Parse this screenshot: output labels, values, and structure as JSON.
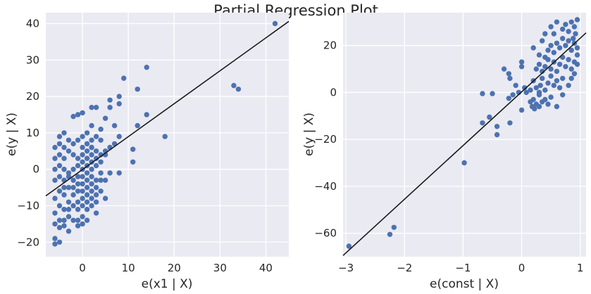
{
  "figure": {
    "suptitle": "Partial Regression Plot"
  },
  "colors": {
    "background": "#eaeaf2",
    "grid": "#ffffff",
    "points": "#4c72b0",
    "line": "#1a1a1a",
    "text": "#262626"
  },
  "chart_data": [
    {
      "type": "scatter",
      "xlabel": "e(x1 | X)",
      "ylabel": "e(y | X)",
      "xlim": [
        -8,
        45
      ],
      "ylim": [
        -24,
        43
      ],
      "xticks": [
        0,
        10,
        20,
        30,
        40
      ],
      "yticks": [
        -20,
        -10,
        0,
        10,
        20,
        30,
        40
      ],
      "xtick_labels": [
        "0",
        "10",
        "20",
        "30",
        "40"
      ],
      "ytick_labels": [
        "−20",
        "−10",
        "0",
        "10",
        "20",
        "30",
        "40"
      ],
      "fit_line": {
        "x": [
          -8,
          45
        ],
        "y": [
          -7.3,
          40.6
        ]
      },
      "points": [
        [
          -6,
          -19
        ],
        [
          -6,
          -20.5
        ],
        [
          -5,
          -20
        ],
        [
          -6,
          -15
        ],
        [
          -5,
          -14
        ],
        [
          -5,
          -16
        ],
        [
          -4,
          -14
        ],
        [
          -4,
          -15.5
        ],
        [
          -3,
          -13
        ],
        [
          -2,
          -14
        ],
        [
          -1,
          -14
        ],
        [
          -1,
          -15.5
        ],
        [
          0,
          -13
        ],
        [
          0,
          -15
        ],
        [
          1,
          -14
        ],
        [
          -6,
          -12
        ],
        [
          -5,
          -10
        ],
        [
          -4,
          -11
        ],
        [
          -3,
          -9
        ],
        [
          -3,
          -11
        ],
        [
          -2,
          -10
        ],
        [
          -1,
          -9
        ],
        [
          -1,
          -11
        ],
        [
          0,
          -10
        ],
        [
          0,
          -8
        ],
        [
          1,
          -9
        ],
        [
          1,
          -11
        ],
        [
          2,
          -10
        ],
        [
          2,
          -8
        ],
        [
          3,
          -9
        ],
        [
          -6,
          -8
        ],
        [
          -5,
          -6
        ],
        [
          -4,
          -5
        ],
        [
          -4,
          -7
        ],
        [
          -3,
          -5
        ],
        [
          -2,
          -7
        ],
        [
          -2,
          -5
        ],
        [
          -1,
          -6
        ],
        [
          0,
          -6
        ],
        [
          0,
          -4
        ],
        [
          1,
          -5
        ],
        [
          1,
          -7
        ],
        [
          2,
          -6
        ],
        [
          2,
          -4
        ],
        [
          3,
          -5
        ],
        [
          3,
          -7
        ],
        [
          4,
          -6
        ],
        [
          4,
          -3
        ],
        [
          -6,
          -3
        ],
        [
          -5,
          -2
        ],
        [
          -4,
          -3
        ],
        [
          -3,
          -2
        ],
        [
          -2,
          -3
        ],
        [
          -1,
          -2
        ],
        [
          -1,
          -4
        ],
        [
          0,
          -2
        ],
        [
          1,
          -3
        ],
        [
          2,
          -2
        ],
        [
          3,
          -3
        ],
        [
          4,
          -1
        ],
        [
          5,
          -3
        ],
        [
          -6,
          0
        ],
        [
          -5,
          1
        ],
        [
          -4,
          0
        ],
        [
          -3,
          -1
        ],
        [
          -2,
          0
        ],
        [
          -1,
          1
        ],
        [
          0,
          0
        ],
        [
          0,
          2
        ],
        [
          1,
          1
        ],
        [
          1,
          -1
        ],
        [
          2,
          0
        ],
        [
          2,
          2
        ],
        [
          3,
          1
        ],
        [
          3,
          3
        ],
        [
          4,
          2
        ],
        [
          -6,
          3
        ],
        [
          -5,
          4
        ],
        [
          -4,
          3
        ],
        [
          -3,
          5
        ],
        [
          -2,
          4
        ],
        [
          -1,
          3
        ],
        [
          0,
          4
        ],
        [
          1,
          5
        ],
        [
          1,
          3
        ],
        [
          2,
          6
        ],
        [
          2,
          4
        ],
        [
          3,
          5
        ],
        [
          4,
          4
        ],
        [
          5,
          5
        ],
        [
          6,
          6
        ],
        [
          -6,
          6
        ],
        [
          -5,
          7
        ],
        [
          -4,
          6
        ],
        [
          -3,
          8
        ],
        [
          -2,
          7
        ],
        [
          -1,
          8
        ],
        [
          0,
          6
        ],
        [
          0,
          9
        ],
        [
          1,
          7
        ],
        [
          2,
          8
        ],
        [
          2,
          6
        ],
        [
          3,
          9
        ],
        [
          4,
          8
        ],
        [
          5,
          4
        ],
        [
          6,
          6
        ],
        [
          7,
          7
        ],
        [
          -5,
          9
        ],
        [
          -4,
          10
        ],
        [
          -2,
          14.5
        ],
        [
          -1,
          15
        ],
        [
          0,
          15.5
        ],
        [
          1,
          10
        ],
        [
          2,
          12
        ],
        [
          2,
          17
        ],
        [
          3,
          17
        ],
        [
          4,
          11
        ],
        [
          5,
          14
        ],
        [
          6,
          17
        ],
        [
          6,
          19
        ],
        [
          8,
          20
        ],
        [
          8,
          18
        ],
        [
          9,
          25
        ],
        [
          12,
          22
        ],
        [
          14,
          28
        ],
        [
          7,
          12
        ],
        [
          8,
          9
        ],
        [
          11,
          5.5
        ],
        [
          11,
          2
        ],
        [
          12,
          12
        ],
        [
          14,
          15
        ],
        [
          18,
          9
        ],
        [
          33,
          23
        ],
        [
          34,
          22
        ],
        [
          42,
          40
        ],
        [
          6,
          -1
        ],
        [
          8,
          -1
        ],
        [
          3,
          -12
        ],
        [
          5,
          -8
        ],
        [
          -3,
          -17
        ]
      ]
    },
    {
      "type": "scatter",
      "xlabel": "e(const | X)",
      "ylabel": "e(y | X)",
      "xlim": [
        -3.05,
        1.1
      ],
      "ylim": [
        -70,
        34
      ],
      "xticks": [
        -3,
        -2,
        -1,
        0,
        1
      ],
      "yticks": [
        -60,
        -40,
        -20,
        0,
        20
      ],
      "xtick_labels": [
        "−3",
        "−2",
        "−1",
        "0",
        "1"
      ],
      "ytick_labels": [
        "−60",
        "−40",
        "−20",
        "0",
        "20"
      ],
      "fit_line": {
        "x": [
          -3.05,
          1.1
        ],
        "y": [
          -69.5,
          25.4
        ]
      },
      "points": [
        [
          -2.95,
          -65.5
        ],
        [
          -2.25,
          -60.5
        ],
        [
          -2.18,
          -57.5
        ],
        [
          -0.98,
          -30
        ],
        [
          -0.67,
          -13
        ],
        [
          -0.55,
          -10.5
        ],
        [
          -0.42,
          -14.5
        ],
        [
          -0.42,
          -18
        ],
        [
          -0.67,
          -0.5
        ],
        [
          -0.5,
          -0.5
        ],
        [
          -0.2,
          -13
        ],
        [
          -0.22,
          -2.5
        ],
        [
          -0.15,
          -1
        ],
        [
          -0.05,
          0
        ],
        [
          0.0,
          -7.5
        ],
        [
          -0.3,
          10
        ],
        [
          -0.22,
          8
        ],
        [
          -0.2,
          6
        ],
        [
          -0.1,
          3
        ],
        [
          0.0,
          11
        ],
        [
          0.0,
          13
        ],
        [
          0.05,
          2
        ],
        [
          0.08,
          0
        ],
        [
          0.15,
          -4
        ],
        [
          0.18,
          -6
        ],
        [
          0.2,
          -3
        ],
        [
          0.22,
          -7
        ],
        [
          0.25,
          -5
        ],
        [
          0.3,
          -6
        ],
        [
          0.35,
          -4
        ],
        [
          0.4,
          -3
        ],
        [
          0.45,
          -5
        ],
        [
          0.5,
          -2
        ],
        [
          0.2,
          5
        ],
        [
          0.25,
          2
        ],
        [
          0.3,
          0
        ],
        [
          0.32,
          3
        ],
        [
          0.35,
          6
        ],
        [
          0.4,
          1
        ],
        [
          0.45,
          4
        ],
        [
          0.5,
          7
        ],
        [
          0.55,
          3
        ],
        [
          0.6,
          5
        ],
        [
          0.65,
          2
        ],
        [
          0.7,
          6
        ],
        [
          0.25,
          10
        ],
        [
          0.3,
          12
        ],
        [
          0.35,
          9
        ],
        [
          0.4,
          11
        ],
        [
          0.45,
          14
        ],
        [
          0.5,
          10
        ],
        [
          0.55,
          13
        ],
        [
          0.6,
          9
        ],
        [
          0.65,
          12
        ],
        [
          0.7,
          15
        ],
        [
          0.75,
          11
        ],
        [
          0.8,
          14
        ],
        [
          0.85,
          10
        ],
        [
          0.9,
          13
        ],
        [
          0.2,
          19
        ],
        [
          0.3,
          16
        ],
        [
          0.35,
          22
        ],
        [
          0.4,
          15
        ],
        [
          0.45,
          18
        ],
        [
          0.5,
          20
        ],
        [
          0.55,
          17
        ],
        [
          0.6,
          21
        ],
        [
          0.65,
          19
        ],
        [
          0.7,
          23
        ],
        [
          0.75,
          20
        ],
        [
          0.8,
          22
        ],
        [
          0.85,
          18
        ],
        [
          0.9,
          21
        ],
        [
          0.95,
          19
        ],
        [
          0.4,
          25
        ],
        [
          0.5,
          28
        ],
        [
          0.55,
          25
        ],
        [
          0.6,
          30
        ],
        [
          0.7,
          27
        ],
        [
          0.75,
          29
        ],
        [
          0.8,
          26
        ],
        [
          0.85,
          30
        ],
        [
          0.9,
          28
        ],
        [
          0.95,
          31
        ],
        [
          0.92,
          25
        ],
        [
          0.88,
          23
        ],
        [
          0.6,
          -6
        ],
        [
          0.7,
          -1
        ],
        [
          0.8,
          3
        ],
        [
          0.85,
          6
        ],
        [
          0.9,
          8
        ],
        [
          0.95,
          12
        ],
        [
          0.95,
          16
        ],
        [
          0.3,
          -1
        ],
        [
          0.15,
          1
        ]
      ]
    }
  ]
}
